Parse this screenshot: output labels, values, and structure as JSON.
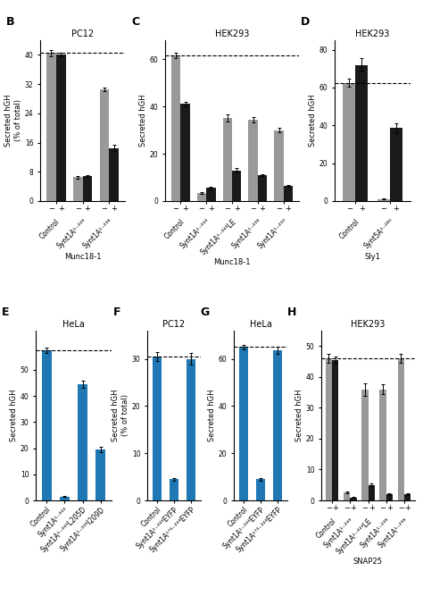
{
  "chart_data": [
    {
      "type": "bar",
      "title": "PC12",
      "y_label": "Secreted hGH\n(% of total)",
      "x_label": "Munc18-1",
      "categories": [
        "Control",
        "Synt1A¹⁻²⁴³",
        "Synt1A¹⁻²³⁸"
      ],
      "series": [
        {
          "name": "−",
          "color": "#999999",
          "values": [
            40.5,
            6.5,
            30.5
          ],
          "errors": [
            0.8,
            0.3,
            0.5
          ]
        },
        {
          "name": "+",
          "color": "#1a1a1a",
          "values": [
            40.0,
            6.8,
            14.5
          ],
          "errors": [
            0.5,
            0.3,
            0.8
          ]
        }
      ],
      "reference_y": 40.5,
      "ylim": [
        0,
        44
      ],
      "yticks": [
        0,
        8,
        16,
        24,
        32,
        40
      ],
      "annotations": [
        {
          "text": "B"
        }
      ]
    },
    {
      "type": "bar",
      "title": "HEK293",
      "y_label": "Secreted hGH",
      "x_label": "Munc18-1",
      "categories": [
        "Control",
        "Synt1A¹⁻²⁴³",
        "Synt1A¹⁻²⁴³LE",
        "Synt1A¹⁻²³⁸",
        "Synt1A¹⁻²³⁰"
      ],
      "series": [
        {
          "name": "−",
          "color": "#999999",
          "values": [
            61.5,
            3.5,
            35.0,
            34.5,
            30.0
          ],
          "errors": [
            1.2,
            0.3,
            1.5,
            1.2,
            0.8
          ]
        },
        {
          "name": "+",
          "color": "#1a1a1a",
          "values": [
            41.0,
            5.5,
            13.0,
            11.0,
            6.5
          ],
          "errors": [
            0.8,
            0.4,
            0.8,
            0.5,
            0.4
          ]
        }
      ],
      "reference_y": 61.5,
      "ylim": [
        0,
        68
      ],
      "yticks": [
        0,
        20,
        40,
        60
      ],
      "annotations": [
        {
          "text": "C"
        }
      ]
    },
    {
      "type": "bar",
      "title": "HEK293",
      "y_label": "Secreted hGH",
      "x_label": "Sly1",
      "categories": [
        "Control",
        "Synt5A¹⁻²⁶⁰"
      ],
      "series": [
        {
          "name": "−",
          "color": "#999999",
          "values": [
            62.5,
            1.0
          ],
          "errors": [
            2.0,
            0.2
          ]
        },
        {
          "name": "+",
          "color": "#1a1a1a",
          "values": [
            72.0,
            38.5
          ],
          "errors": [
            3.5,
            2.5
          ]
        }
      ],
      "reference_y": 62.5,
      "ylim": [
        0,
        85
      ],
      "yticks": [
        0,
        20,
        40,
        60,
        80
      ],
      "annotations": [
        {
          "text": "D"
        }
      ]
    },
    {
      "type": "bar",
      "title": "HeLa",
      "y_label": "Secreted hGH",
      "categories": [
        "Control",
        "Synt1A¹⁻²⁴³",
        "Synt1A¹⁻²⁴³L205D",
        "Synt1A¹⁻²⁴³I209D"
      ],
      "values": [
        57.5,
        1.5,
        44.5,
        19.5
      ],
      "errors": [
        1.0,
        0.2,
        1.5,
        1.0
      ],
      "reference_y": 57.5,
      "ylim": [
        0,
        65
      ],
      "yticks": [
        0,
        10,
        20,
        30,
        40,
        50
      ],
      "annotations": [
        {
          "text": "E"
        }
      ]
    },
    {
      "type": "bar",
      "title": "PC12",
      "y_label": "Secreted hGH\n(% of total)",
      "categories": [
        "Control",
        "Synt1A¹⁻²⁴³EYFP",
        "Synt1A¹⁷³⁻²⁴³EYFP"
      ],
      "values": [
        30.5,
        4.5,
        30.0
      ],
      "errors": [
        1.0,
        0.3,
        1.2
      ],
      "reference_y": 30.5,
      "ylim": [
        0,
        36
      ],
      "yticks": [
        0,
        10,
        20,
        30
      ],
      "annotations": [
        {
          "text": "F"
        }
      ]
    },
    {
      "type": "bar",
      "title": "HeLa",
      "y_label": "Secreted hGH",
      "categories": [
        "Control",
        "Synt1A¹⁻²⁴³EYFP",
        "Synt1A¹⁷³⁻²⁴³EYFP"
      ],
      "values": [
        65.0,
        9.0,
        63.5
      ],
      "errors": [
        1.0,
        0.5,
        1.5
      ],
      "reference_y": 65.0,
      "ylim": [
        0,
        72
      ],
      "yticks": [
        0,
        20,
        40,
        60
      ],
      "annotations": [
        {
          "text": "G"
        }
      ]
    },
    {
      "type": "bar",
      "title": "HEK293",
      "y_label": "Secreted hGH",
      "x_label": "SNAP25",
      "categories": [
        "Control",
        "Synt1A¹⁻²⁴³",
        "Synt1A¹⁻²⁴³LE",
        "Synt1A¹⁻²³⁸",
        "Synt1A¹⁻²³⁸"
      ],
      "series": [
        {
          "name": "−",
          "color": "#999999",
          "values": [
            46.0,
            2.5,
            36.0,
            36.0,
            46.0
          ],
          "errors": [
            1.5,
            0.3,
            2.0,
            1.5,
            1.5
          ]
        },
        {
          "name": "+",
          "color": "#1a1a1a",
          "values": [
            45.5,
            1.0,
            5.0,
            2.0,
            2.0
          ],
          "errors": [
            1.2,
            0.2,
            0.5,
            0.3,
            0.3
          ]
        }
      ],
      "reference_y": 46.0,
      "ylim": [
        0,
        55
      ],
      "yticks": [
        0,
        10,
        20,
        30,
        40,
        50
      ],
      "annotations": [
        {
          "text": "H"
        }
      ]
    }
  ]
}
